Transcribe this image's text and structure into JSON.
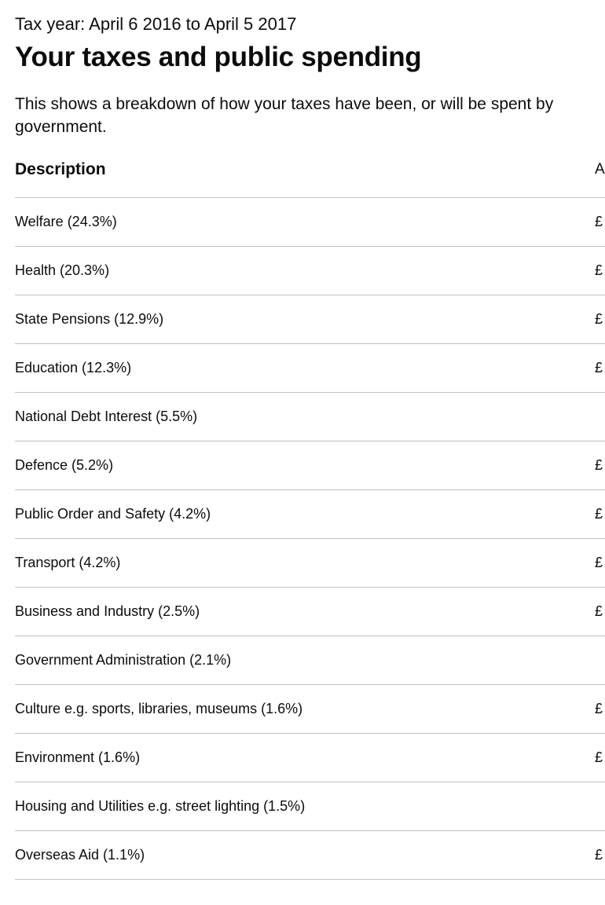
{
  "header": {
    "tax_year": "Tax year: April 6 2016 to April 5 2017",
    "title": "Your taxes and public spending",
    "intro": "This shows a breakdown of how your taxes have been, or will be spent by government."
  },
  "table": {
    "columns": {
      "description": "Description",
      "amount": "A"
    },
    "rows": [
      {
        "description": "Welfare (24.3%)",
        "amount": "£"
      },
      {
        "description": "Health (20.3%)",
        "amount": "£"
      },
      {
        "description": "State Pensions (12.9%)",
        "amount": "£"
      },
      {
        "description": "Education (12.3%)",
        "amount": "£"
      },
      {
        "description": "National Debt Interest (5.5%)",
        "amount": ""
      },
      {
        "description": "Defence (5.2%)",
        "amount": "£"
      },
      {
        "description": "Public Order and Safety (4.2%)",
        "amount": "£"
      },
      {
        "description": "Transport (4.2%)",
        "amount": "£"
      },
      {
        "description": "Business and Industry (2.5%)",
        "amount": "£"
      },
      {
        "description": "Government Administration (2.1%)",
        "amount": ""
      },
      {
        "description": "Culture e.g. sports, libraries, museums (1.6%)",
        "amount": "£"
      },
      {
        "description": "Environment (1.6%)",
        "amount": "£"
      },
      {
        "description": "Housing and Utilities e.g. street lighting (1.5%)",
        "amount": ""
      },
      {
        "description": "Overseas Aid (1.1%)",
        "amount": "£"
      }
    ]
  }
}
